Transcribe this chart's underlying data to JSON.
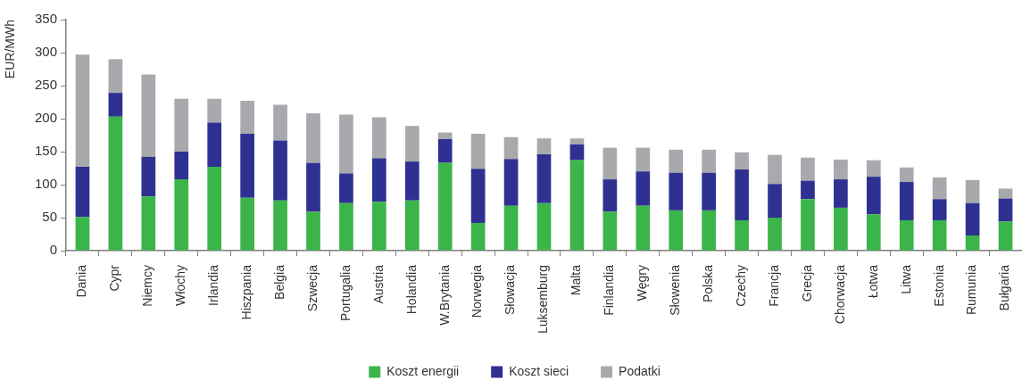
{
  "chart_data": {
    "type": "bar",
    "stacked": true,
    "ylabel": "EUR/MWh",
    "categories": [
      "Dania",
      "Cypr",
      "Niemcy",
      "Włochy",
      "Irlandia",
      "Hiszpania",
      "Belgia",
      "Szwecja",
      "Portugalia",
      "Austria",
      "Holandia",
      "W.Brytania",
      "Norwegia",
      "Słowacja",
      "Luksemburg",
      "Malta",
      "Finlandia",
      "Węgry",
      "Słowenia",
      "Polska",
      "Czechy",
      "Francja",
      "Grecja",
      "Chorwacja",
      "Łotwa",
      "Litwa",
      "Estonia",
      "Rumunia",
      "Bułgaria"
    ],
    "series": [
      {
        "name": "Koszt energii",
        "color": "#3bb54a",
        "values": [
          51,
          203,
          82,
          108,
          127,
          80,
          76,
          59,
          72,
          74,
          76,
          133,
          42,
          68,
          72,
          137,
          59,
          68,
          61,
          61,
          46,
          50,
          78,
          65,
          55,
          46,
          46,
          23,
          44
        ]
      },
      {
        "name": "Koszt sieci",
        "color": "#2e3192",
        "values": [
          76,
          36,
          60,
          42,
          67,
          97,
          91,
          74,
          45,
          66,
          59,
          36,
          82,
          71,
          74,
          24,
          49,
          52,
          57,
          57,
          77,
          51,
          28,
          43,
          57,
          58,
          32,
          49,
          35
        ]
      },
      {
        "name": "Podatki",
        "color": "#a7a9ac",
        "values": [
          170,
          51,
          125,
          80,
          36,
          50,
          54,
          75,
          89,
          62,
          54,
          10,
          53,
          33,
          24,
          9,
          48,
          36,
          35,
          35,
          26,
          44,
          35,
          30,
          25,
          22,
          33,
          35,
          15
        ]
      }
    ],
    "ylim": [
      0,
      350
    ],
    "yticks": [
      0,
      50,
      100,
      150,
      200,
      250,
      300,
      350
    ],
    "grid": false,
    "legend": "bottom"
  }
}
